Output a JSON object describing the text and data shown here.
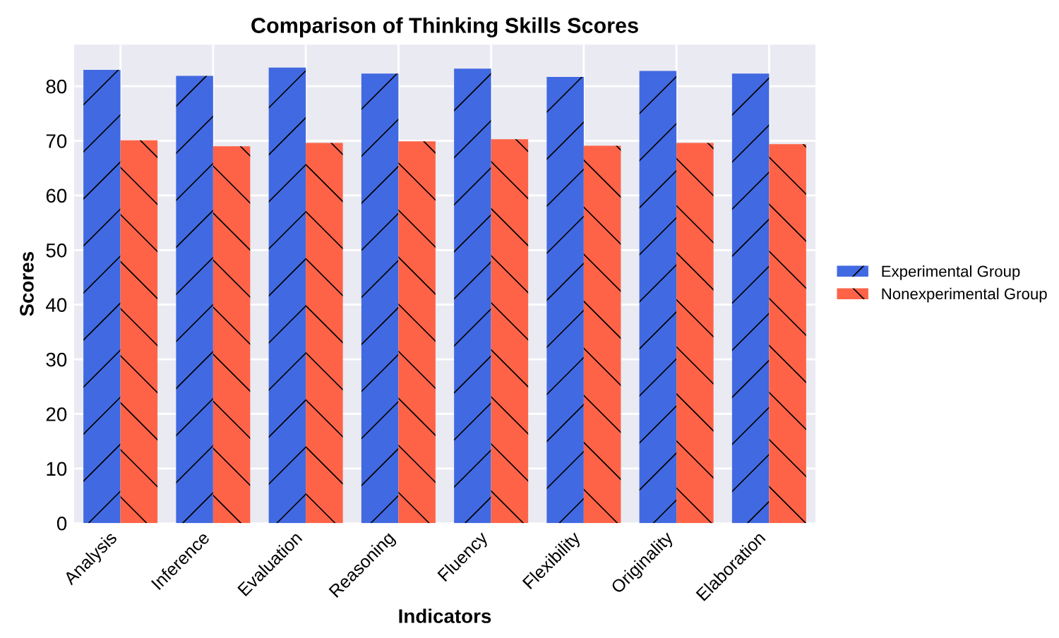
{
  "chart_data": {
    "type": "bar",
    "title": "Comparison of Thinking Skills Scores",
    "xlabel": "Indicators",
    "ylabel": "Scores",
    "categories": [
      "Analysis",
      "Inference",
      "Evaluation",
      "Reasoning",
      "Fluency",
      "Flexibility",
      "Originality",
      "Elaboration"
    ],
    "series": [
      {
        "name": "Experimental Group",
        "color": "#4169e1",
        "values": [
          83.0,
          81.9,
          83.4,
          82.3,
          83.2,
          81.7,
          82.8,
          82.3
        ]
      },
      {
        "name": "Nonexperimental Group",
        "color": "#ff6347",
        "values": [
          70.1,
          69.0,
          69.6,
          69.9,
          70.3,
          69.1,
          69.6,
          69.4
        ]
      }
    ],
    "ylim": [
      0,
      87.6
    ],
    "yticks": [
      0,
      10,
      20,
      30,
      40,
      50,
      60,
      70,
      80
    ],
    "grid": true,
    "legend": "right"
  }
}
